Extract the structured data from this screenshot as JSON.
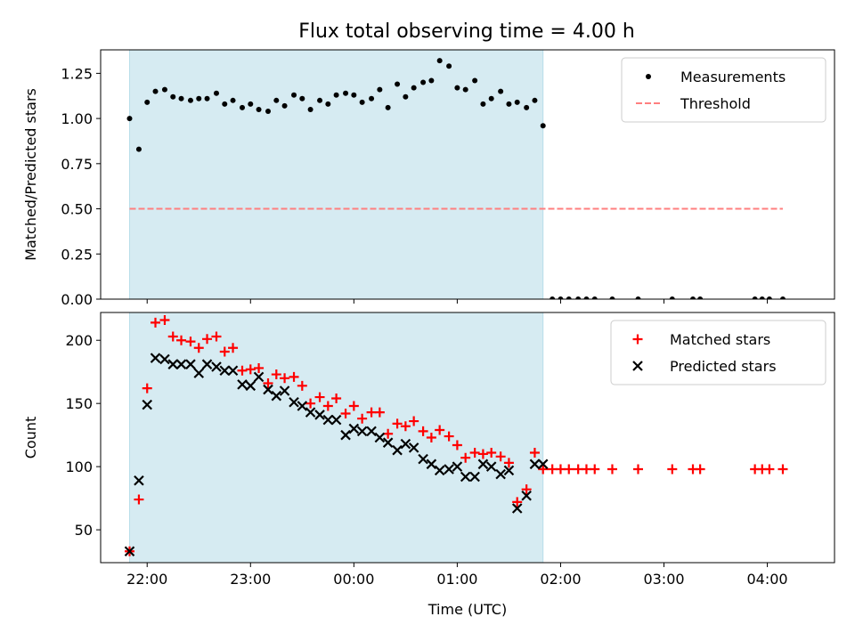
{
  "figure": {
    "title": "Flux total observing time = 4.00 h"
  },
  "chart_data": [
    {
      "type": "scatter",
      "xlabel": "",
      "ylabel": "Matched/Predicted stars",
      "xlim": [
        21.55,
        28.65
      ],
      "ylim": [
        0.0,
        1.38
      ],
      "grid": false,
      "yticks": [
        0.0,
        0.25,
        0.5,
        0.75,
        1.0,
        1.25
      ],
      "ytick_labels": [
        "0.00",
        "0.25",
        "0.50",
        "0.75",
        "1.00",
        "1.25"
      ],
      "xticks": [
        22,
        23,
        24,
        25,
        26,
        27,
        28
      ],
      "shaded_region": {
        "x": [
          21.83,
          25.83
        ],
        "color": "#add8e6"
      },
      "legend": {
        "placement": "top-right",
        "entries": [
          {
            "label": "Measurements",
            "marker": "dot",
            "color": "#000000"
          },
          {
            "label": "Threshold",
            "marker": "dashed-line",
            "color": "#ff7f7f"
          }
        ]
      },
      "series": [
        {
          "name": "Measurements",
          "kind": "scatter",
          "marker": "dot",
          "color": "#000000",
          "x": [
            21.83,
            21.92,
            22.0,
            22.08,
            22.17,
            22.25,
            22.33,
            22.42,
            22.5,
            22.58,
            22.67,
            22.75,
            22.83,
            22.92,
            23.0,
            23.08,
            23.17,
            23.25,
            23.33,
            23.42,
            23.5,
            23.58,
            23.67,
            23.75,
            23.83,
            23.92,
            24.0,
            24.08,
            24.17,
            24.25,
            24.33,
            24.42,
            24.5,
            24.58,
            24.67,
            24.75,
            24.83,
            24.92,
            25.0,
            25.08,
            25.17,
            25.25,
            25.33,
            25.42,
            25.5,
            25.58,
            25.67,
            25.75,
            25.83,
            25.92,
            26.0,
            26.08,
            26.17,
            26.25,
            26.33,
            26.5,
            26.75,
            27.08,
            27.28,
            27.35,
            27.88,
            27.95,
            28.02,
            28.15
          ],
          "y": [
            1.0,
            0.83,
            1.09,
            1.15,
            1.16,
            1.12,
            1.11,
            1.1,
            1.11,
            1.11,
            1.14,
            1.08,
            1.1,
            1.06,
            1.08,
            1.05,
            1.04,
            1.1,
            1.07,
            1.13,
            1.11,
            1.05,
            1.1,
            1.08,
            1.13,
            1.14,
            1.13,
            1.09,
            1.11,
            1.16,
            1.06,
            1.19,
            1.12,
            1.17,
            1.2,
            1.21,
            1.32,
            1.29,
            1.17,
            1.16,
            1.21,
            1.08,
            1.11,
            1.15,
            1.08,
            1.09,
            1.06,
            1.1,
            0.96,
            0.0,
            0.0,
            0.0,
            0.0,
            0.0,
            0.0,
            0.0,
            0.0,
            0.0,
            0.0,
            0.0,
            0.0,
            0.0,
            0.0,
            0.0
          ]
        },
        {
          "name": "Threshold",
          "kind": "line",
          "style": "dashed",
          "color": "#ff7f7f",
          "x": [
            21.83,
            28.15
          ],
          "y": [
            0.5,
            0.5
          ]
        }
      ]
    },
    {
      "type": "scatter",
      "xlabel": "Time (UTC)",
      "ylabel": "Count",
      "xlim": [
        21.55,
        28.65
      ],
      "ylim": [
        24,
        222
      ],
      "grid": false,
      "yticks": [
        50,
        100,
        150,
        200
      ],
      "ytick_labels": [
        "50",
        "100",
        "150",
        "200"
      ],
      "xticks": [
        22,
        23,
        24,
        25,
        26,
        27,
        28
      ],
      "xtick_labels": [
        "22:00",
        "23:00",
        "00:00",
        "01:00",
        "02:00",
        "03:00",
        "04:00"
      ],
      "shaded_region": {
        "x": [
          21.83,
          25.83
        ],
        "color": "#add8e6"
      },
      "legend": {
        "placement": "top-right",
        "entries": [
          {
            "label": "Matched stars",
            "marker": "plus",
            "color": "#ff0000"
          },
          {
            "label": "Predicted stars",
            "marker": "x",
            "color": "#000000"
          }
        ]
      },
      "series": [
        {
          "name": "Matched stars",
          "marker": "plus",
          "color": "#ff0000",
          "x": [
            21.83,
            21.92,
            22.0,
            22.08,
            22.17,
            22.25,
            22.33,
            22.42,
            22.5,
            22.58,
            22.67,
            22.75,
            22.83,
            22.92,
            23.0,
            23.08,
            23.17,
            23.25,
            23.33,
            23.42,
            23.5,
            23.58,
            23.67,
            23.75,
            23.83,
            23.92,
            24.0,
            24.08,
            24.17,
            24.25,
            24.33,
            24.42,
            24.5,
            24.58,
            24.67,
            24.75,
            24.83,
            24.92,
            25.0,
            25.08,
            25.17,
            25.25,
            25.33,
            25.42,
            25.5,
            25.58,
            25.67,
            25.75,
            25.83,
            25.92,
            26.0,
            26.08,
            26.17,
            26.25,
            26.33,
            26.5,
            26.75,
            27.08,
            27.28,
            27.35,
            27.88,
            27.95,
            28.02,
            28.15
          ],
          "y": [
            33,
            74,
            162,
            214,
            216,
            203,
            200,
            199,
            194,
            201,
            203,
            191,
            194,
            176,
            177,
            178,
            166,
            173,
            170,
            171,
            164,
            150,
            155,
            148,
            154,
            142,
            148,
            138,
            143,
            143,
            126,
            134,
            132,
            136,
            128,
            123,
            129,
            124,
            117,
            107,
            111,
            110,
            111,
            108,
            103,
            72,
            82,
            111,
            98,
            98,
            98,
            98,
            98,
            98,
            98,
            98,
            98,
            98,
            98,
            98,
            98,
            98,
            98,
            98
          ]
        },
        {
          "name": "Predicted stars",
          "marker": "x",
          "color": "#000000",
          "x": [
            21.83,
            21.92,
            22.0,
            22.08,
            22.17,
            22.25,
            22.33,
            22.42,
            22.5,
            22.58,
            22.67,
            22.75,
            22.83,
            22.92,
            23.0,
            23.08,
            23.17,
            23.25,
            23.33,
            23.42,
            23.5,
            23.58,
            23.67,
            23.75,
            23.83,
            23.92,
            24.0,
            24.08,
            24.17,
            24.25,
            24.33,
            24.42,
            24.5,
            24.58,
            24.67,
            24.75,
            24.83,
            24.92,
            25.0,
            25.08,
            25.17,
            25.25,
            25.33,
            25.42,
            25.5,
            25.58,
            25.67,
            25.75,
            25.83
          ],
          "y": [
            33,
            89,
            149,
            186,
            185,
            181,
            181,
            181,
            174,
            181,
            179,
            176,
            176,
            165,
            164,
            171,
            161,
            156,
            160,
            151,
            148,
            143,
            141,
            137,
            137,
            125,
            130,
            128,
            128,
            123,
            119,
            113,
            118,
            115,
            106,
            102,
            97,
            98,
            100,
            92,
            92,
            102,
            100,
            94,
            97,
            67,
            77,
            102,
            102
          ]
        }
      ]
    }
  ]
}
